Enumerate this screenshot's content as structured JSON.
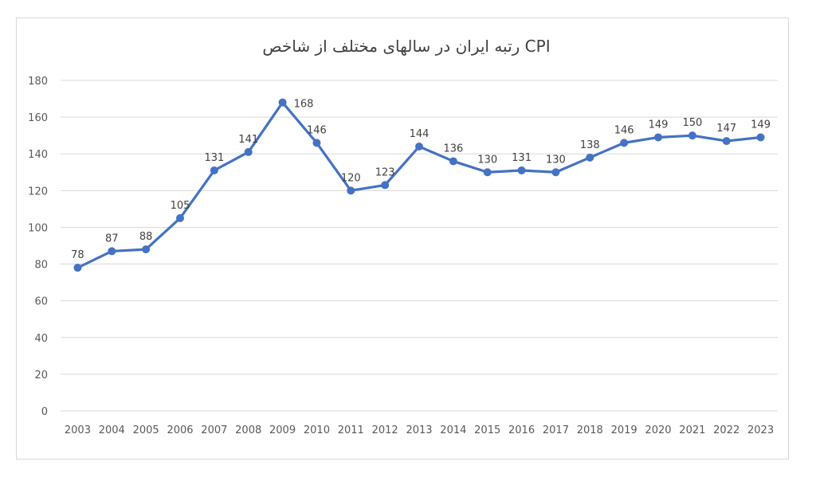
{
  "chart_data": {
    "type": "line",
    "title": "رتبه ایران در سالهای مختلف از شاخص CPI",
    "xlabel": "",
    "ylabel": "",
    "ylim": [
      0,
      180
    ],
    "yticks": [
      0,
      20,
      40,
      60,
      80,
      100,
      120,
      140,
      160,
      180
    ],
    "categories": [
      "2003",
      "2004",
      "2005",
      "2006",
      "2007",
      "2008",
      "2009",
      "2010",
      "2011",
      "2012",
      "2013",
      "2014",
      "2015",
      "2016",
      "2017",
      "2018",
      "2019",
      "2020",
      "2021",
      "2022",
      "2023"
    ],
    "series": [
      {
        "values": [
          78,
          87,
          88,
          105,
          131,
          141,
          168,
          146,
          120,
          123,
          144,
          136,
          130,
          131,
          130,
          138,
          146,
          149,
          150,
          147,
          149
        ]
      }
    ],
    "data_labels": [
      "78",
      "87",
      "88",
      "105",
      "131",
      "141",
      "168",
      "146",
      "120",
      "123",
      "144",
      "136",
      "130",
      "131",
      "130",
      "138",
      "146",
      "149",
      "150",
      "147",
      "149"
    ],
    "grid": true,
    "legend": "none",
    "colors": {
      "line": "#4472c4",
      "grid": "#d9d9d9",
      "text": "#595959"
    }
  }
}
